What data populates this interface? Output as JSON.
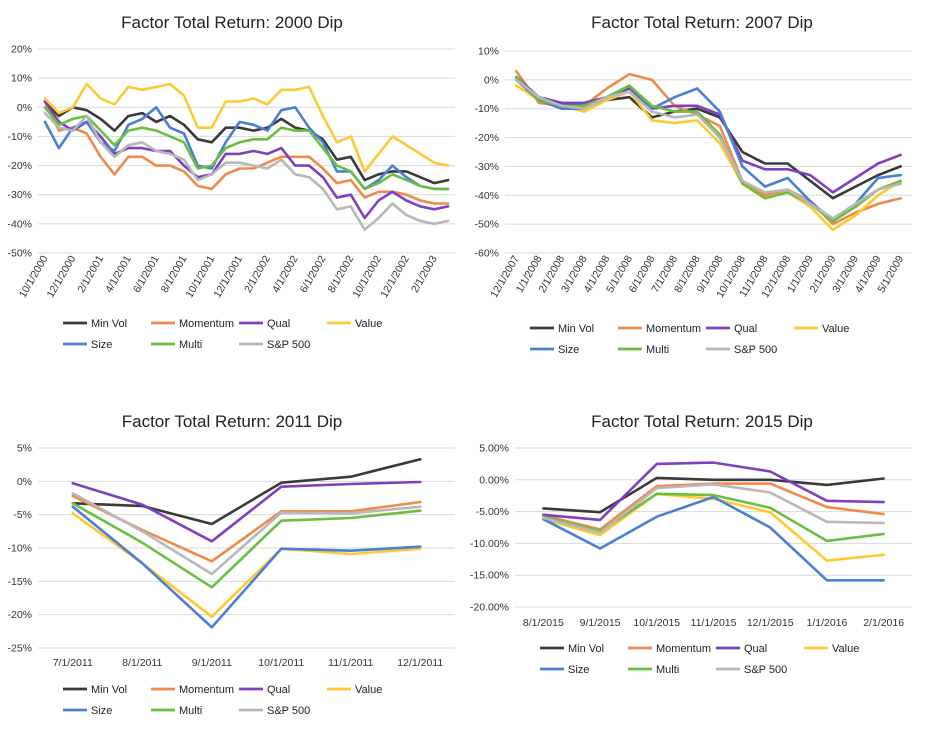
{
  "chart_data": [
    {
      "type": "line",
      "title": "Factor Total Return: 2000 Dip",
      "xlabel": "",
      "ylabel": "",
      "ylim": [
        -50,
        20
      ],
      "y_step": 10,
      "y_format": "pct0",
      "grid": true,
      "legend_position": "bottom",
      "x_labels_rotated": true,
      "x_label_every": 2,
      "categories": [
        "10/1/2000",
        "11/1/2000",
        "12/1/2000",
        "1/1/2001",
        "2/1/2001",
        "3/1/2001",
        "4/1/2001",
        "5/1/2001",
        "6/1/2001",
        "7/1/2001",
        "8/1/2001",
        "9/1/2001",
        "10/1/2001",
        "11/1/2001",
        "12/1/2001",
        "1/1/2002",
        "2/1/2002",
        "3/1/2002",
        "4/1/2002",
        "5/1/2002",
        "6/1/2002",
        "7/1/2002",
        "8/1/2002",
        "9/1/2002",
        "10/1/2002",
        "11/1/2002",
        "12/1/2002",
        "1/1/2003",
        "2/1/2003",
        "3/1/2003"
      ],
      "series": [
        {
          "name": "Min Vol",
          "color": "#3a3a3a",
          "values": [
            2,
            -3,
            0,
            -1,
            -4,
            -8,
            -3,
            -2,
            -5,
            -3,
            -6,
            -11,
            -12,
            -7,
            -7,
            -8,
            -7,
            -4,
            -7,
            -8,
            -11,
            -18,
            -17,
            -25,
            -23,
            -22,
            -22,
            -24,
            -26,
            -25
          ]
        },
        {
          "name": "Momentum",
          "color": "#f08a4b",
          "values": [
            2,
            -8,
            -7,
            -9,
            -17,
            -23,
            -17,
            -17,
            -20,
            -20,
            -22,
            -27,
            -28,
            -23,
            -21,
            -21,
            -19,
            -17,
            -17,
            -17,
            -21,
            -26,
            -25,
            -31,
            -29,
            -29,
            -30,
            -32,
            -33,
            -33
          ]
        },
        {
          "name": "Qual",
          "color": "#7f3fbf",
          "values": [
            2,
            -5,
            -8,
            -5,
            -10,
            -16,
            -14,
            -14,
            -15,
            -15,
            -20,
            -24,
            -23,
            -16,
            -16,
            -15,
            -16,
            -14,
            -20,
            -20,
            -24,
            -31,
            -30,
            -38,
            -32,
            -29,
            -32,
            -34,
            -35,
            -34
          ]
        },
        {
          "name": "Value",
          "color": "#ffc933",
          "values": [
            3,
            -2,
            0,
            8,
            3,
            1,
            7,
            6,
            7,
            8,
            4,
            -7,
            -7,
            2,
            2,
            3,
            1,
            6,
            6,
            7,
            -3,
            -12,
            -10,
            -22,
            -16,
            -10,
            -13,
            -16,
            -19,
            -20
          ]
        },
        {
          "name": "Size",
          "color": "#4a7fd4",
          "values": [
            -5,
            -14,
            -7,
            -5,
            -12,
            -15,
            -6,
            -4,
            0,
            -7,
            -9,
            -20,
            -21,
            -12,
            -5,
            -6,
            -8,
            -1,
            0,
            -7,
            -12,
            -22,
            -22,
            -28,
            -25,
            -20,
            -24,
            -27,
            -28,
            -28
          ]
        },
        {
          "name": "Multi",
          "color": "#6abf40",
          "values": [
            0,
            -6,
            -4,
            -3,
            -8,
            -13,
            -8,
            -7,
            -8,
            -10,
            -12,
            -21,
            -20,
            -14,
            -12,
            -11,
            -11,
            -7,
            -8,
            -8,
            -14,
            -20,
            -22,
            -28,
            -26,
            -23,
            -25,
            -27,
            -28,
            -28
          ]
        },
        {
          "name": "S&P 500",
          "color": "#b8b8b8",
          "values": [
            -2,
            -7,
            -8,
            -3,
            -12,
            -17,
            -13,
            -12,
            -15,
            -16,
            -18,
            -25,
            -23,
            -19,
            -19,
            -20,
            -21,
            -18,
            -23,
            -24,
            -28,
            -35,
            -34,
            -42,
            -38,
            -33,
            -37,
            -39,
            -40,
            -39
          ]
        }
      ]
    },
    {
      "type": "line",
      "title": "Factor Total Return: 2007 Dip",
      "xlabel": "",
      "ylabel": "",
      "ylim": [
        -60,
        10
      ],
      "y_step": 10,
      "y_format": "pct0",
      "grid": true,
      "legend_position": "bottom",
      "x_labels_rotated": true,
      "x_label_every": 1,
      "categories": [
        "12/1/2007",
        "1/1/2008",
        "2/1/2008",
        "3/1/2008",
        "4/1/2008",
        "5/1/2008",
        "6/1/2008",
        "7/1/2008",
        "8/1/2008",
        "9/1/2008",
        "10/1/2008",
        "11/1/2008",
        "12/1/2008",
        "1/1/2009",
        "2/1/2009",
        "3/1/2009",
        "4/1/2009",
        "5/1/2009"
      ],
      "series": [
        {
          "name": "Min Vol",
          "color": "#3a3a3a",
          "values": [
            0,
            -6,
            -8,
            -9,
            -7,
            -6,
            -13,
            -11,
            -10,
            -13,
            -25,
            -29,
            -29,
            -35,
            -41,
            -37,
            -33,
            -30
          ]
        },
        {
          "name": "Momentum",
          "color": "#f08a4b",
          "values": [
            3,
            -8,
            -9,
            -9,
            -3,
            2,
            0,
            -9,
            -12,
            -16,
            -35,
            -40,
            -38,
            -42,
            -50,
            -46,
            -43,
            -41
          ]
        },
        {
          "name": "Qual",
          "color": "#7f3fbf",
          "values": [
            1,
            -6,
            -8,
            -8,
            -6,
            -3,
            -10,
            -9,
            -9,
            -12,
            -28,
            -31,
            -31,
            -33,
            -39,
            -34,
            -29,
            -26
          ]
        },
        {
          "name": "Value",
          "color": "#ffc933",
          "values": [
            -2,
            -7,
            -9,
            -11,
            -7,
            -4,
            -14,
            -15,
            -14,
            -22,
            -36,
            -41,
            -39,
            -44,
            -52,
            -47,
            -40,
            -35
          ]
        },
        {
          "name": "Size",
          "color": "#4a7fd4",
          "values": [
            0,
            -7,
            -10,
            -10,
            -6,
            -2,
            -10,
            -6,
            -3,
            -11,
            -30,
            -37,
            -34,
            -42,
            -49,
            -43,
            -34,
            -33
          ]
        },
        {
          "name": "Multi",
          "color": "#6abf40",
          "values": [
            1,
            -7,
            -9,
            -9,
            -6,
            -2,
            -9,
            -11,
            -11,
            -19,
            -36,
            -41,
            -39,
            -43,
            -49,
            -44,
            -38,
            -35
          ]
        },
        {
          "name": "S&P 500",
          "color": "#b8b8b8",
          "values": [
            0,
            -6,
            -9,
            -10,
            -6,
            -4,
            -11,
            -13,
            -12,
            -20,
            -35,
            -39,
            -38,
            -43,
            -48,
            -43,
            -38,
            -36
          ]
        }
      ]
    },
    {
      "type": "line",
      "title": "Factor Total Return: 2011 Dip",
      "xlabel": "",
      "ylabel": "",
      "ylim": [
        -25,
        5
      ],
      "y_step": 5,
      "y_format": "pct0",
      "grid": true,
      "legend_position": "bottom",
      "x_labels_rotated": false,
      "x_label_every": 1,
      "categories": [
        "7/1/2011",
        "8/1/2011",
        "9/1/2011",
        "10/1/2011",
        "11/1/2011",
        "12/1/2011"
      ],
      "series": [
        {
          "name": "Min Vol",
          "color": "#3a3a3a",
          "values": [
            -3.3,
            -3.7,
            -6.4,
            -0.2,
            0.7,
            3.3
          ]
        },
        {
          "name": "Momentum",
          "color": "#f08a4b",
          "values": [
            -2.2,
            -7.3,
            -12,
            -4.5,
            -4.5,
            -3.1
          ]
        },
        {
          "name": "Qual",
          "color": "#7f3fbf",
          "values": [
            -0.3,
            -3.5,
            -9.0,
            -0.8,
            -0.4,
            -0.1
          ]
        },
        {
          "name": "Value",
          "color": "#ffc933",
          "values": [
            -4.8,
            -12.3,
            -20.3,
            -10.1,
            -10.9,
            -10.1
          ]
        },
        {
          "name": "Size",
          "color": "#4a7fd4",
          "values": [
            -3.8,
            -12.3,
            -21.9,
            -10.1,
            -10.4,
            -9.8
          ]
        },
        {
          "name": "Multi",
          "color": "#6abf40",
          "values": [
            -3.3,
            -9.2,
            -15.9,
            -5.9,
            -5.5,
            -4.4
          ]
        },
        {
          "name": "S&P 500",
          "color": "#b8b8b8",
          "values": [
            -1.8,
            -7.5,
            -13.9,
            -4.7,
            -4.8,
            -3.8
          ]
        }
      ]
    },
    {
      "type": "line",
      "title": "Factor Total Return: 2015 Dip",
      "xlabel": "",
      "ylabel": "",
      "ylim": [
        -20,
        5
      ],
      "y_step": 5,
      "y_format": "pct2",
      "grid": true,
      "legend_position": "bottom",
      "x_labels_rotated": false,
      "x_label_every": 1,
      "categories": [
        "8/1/2015",
        "9/1/2015",
        "10/1/2015",
        "11/1/2015",
        "12/1/2015",
        "1/1/2016",
        "2/1/2016"
      ],
      "series": [
        {
          "name": "Min Vol",
          "color": "#3a3a3a",
          "values": [
            -4.5,
            -5.1,
            0.3,
            0.0,
            0.0,
            -0.8,
            0.2
          ]
        },
        {
          "name": "Momentum",
          "color": "#f08a4b",
          "values": [
            -5.6,
            -7.8,
            -1.0,
            -0.6,
            -0.6,
            -4.3,
            -5.4
          ]
        },
        {
          "name": "Qual",
          "color": "#7f3fbf",
          "values": [
            -5.5,
            -6.3,
            2.5,
            2.7,
            1.3,
            -3.3,
            -3.5
          ]
        },
        {
          "name": "Value",
          "color": "#ffc933",
          "values": [
            -6.2,
            -8.7,
            -2.2,
            -3.0,
            -5.1,
            -12.7,
            -11.8
          ]
        },
        {
          "name": "Size",
          "color": "#4a7fd4",
          "values": [
            -6.2,
            -10.8,
            -5.8,
            -2.7,
            -7.5,
            -15.8,
            -15.8
          ]
        },
        {
          "name": "Multi",
          "color": "#6abf40",
          "values": [
            -5.8,
            -8.1,
            -2.2,
            -2.4,
            -4.4,
            -9.6,
            -8.5
          ]
        },
        {
          "name": "S&P 500",
          "color": "#b8b8b8",
          "values": [
            -6.0,
            -8.3,
            -1.3,
            -0.7,
            -2.0,
            -6.6,
            -6.8
          ]
        }
      ]
    }
  ]
}
